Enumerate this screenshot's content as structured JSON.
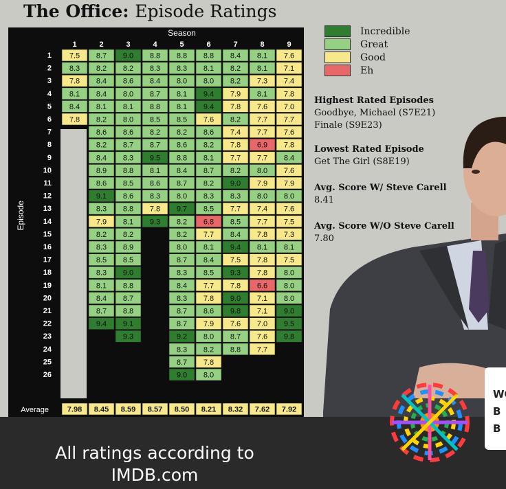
{
  "title": {
    "main": "The Office:",
    "sub": "Episode Ratings"
  },
  "chart_data": {
    "type": "heatmap",
    "title": "The Office: Episode Ratings",
    "xlabel": "Season",
    "ylabel": "Episode",
    "seasons": [
      "1",
      "2",
      "3",
      "4",
      "5",
      "6",
      "7",
      "8",
      "9"
    ],
    "episodes": [
      "1",
      "2",
      "3",
      "4",
      "5",
      "6",
      "7",
      "8",
      "9",
      "10",
      "11",
      "12",
      "13",
      "14",
      "15",
      "16",
      "17",
      "18",
      "19",
      "20",
      "21",
      "22",
      "23",
      "24",
      "25",
      "26"
    ],
    "values": [
      [
        7.5,
        8.3,
        7.8,
        8.1,
        8.4,
        7.8
      ],
      [
        8.7,
        8.2,
        8.4,
        8.4,
        8.1,
        8.2,
        8.6,
        8.2,
        8.4,
        8.9,
        8.6,
        9.1,
        8.3,
        7.9,
        8.2,
        8.3,
        8.5,
        8.3,
        8.1,
        8.4,
        8.7,
        9.4
      ],
      [
        9.0,
        8.2,
        8.6,
        8.0,
        8.1,
        8.0,
        8.6,
        8.7,
        8.3,
        8.8,
        8.5,
        8.6,
        8.8,
        8.1,
        8.2,
        8.9,
        8.5,
        9.0,
        8.8,
        8.7,
        8.8,
        9.1,
        9.3
      ],
      [
        8.8,
        8.3,
        8.4,
        8.7,
        8.8,
        8.5,
        8.2,
        8.7,
        9.5,
        8.1,
        8.6,
        8.3,
        7.8,
        9.3
      ],
      [
        8.8,
        8.3,
        8.0,
        8.1,
        8.1,
        8.5,
        8.2,
        8.6,
        8.8,
        8.4,
        8.7,
        8.0,
        9.7,
        8.2,
        8.2,
        8.0,
        8.7,
        8.3,
        8.4,
        8.3,
        8.7,
        8.7,
        9.2,
        8.3,
        8.7,
        9.0
      ],
      [
        8.8,
        8.1,
        8.0,
        9.4,
        9.4,
        7.6,
        8.6,
        8.2,
        8.1,
        8.7,
        8.2,
        8.3,
        8.5,
        6.8,
        7.7,
        8.1,
        8.4,
        8.5,
        7.7,
        7.8,
        8.6,
        7.9,
        8.0,
        8.2,
        7.8,
        8.0
      ],
      [
        8.4,
        8.2,
        8.2,
        7.9,
        7.8,
        8.2,
        7.4,
        7.8,
        7.7,
        8.2,
        9.0,
        8.3,
        7.7,
        8.5,
        8.4,
        9.4,
        7.5,
        9.3,
        7.8,
        9.0,
        9.8,
        7.6,
        8.7,
        8.8
      ],
      [
        8.1,
        8.1,
        7.3,
        8.1,
        7.6,
        7.7,
        7.7,
        6.9,
        7.7,
        8.0,
        7.9,
        8.0,
        7.4,
        7.7,
        7.8,
        8.1,
        7.8,
        7.8,
        6.6,
        7.1,
        7.1,
        7.0,
        7.6,
        7.7
      ],
      [
        7.6,
        7.1,
        7.4,
        7.8,
        7.0,
        7.7,
        7.6,
        7.8,
        8.4,
        7.6,
        7.9,
        8.0,
        7.6,
        7.5,
        7.3,
        8.1,
        7.5,
        8.0,
        8.0,
        8.0,
        9.0,
        9.5,
        9.8
      ]
    ],
    "averages": [
      "7.98",
      "8.45",
      "8.59",
      "8.57",
      "8.50",
      "8.21",
      "8.32",
      "7.62",
      "7.92"
    ],
    "average_label": "Average",
    "legend": [
      {
        "label": "Incredible",
        "color": "#2f7d2f"
      },
      {
        "label": "Great",
        "color": "#95d083"
      },
      {
        "label": "Good",
        "color": "#f7e98a"
      },
      {
        "label": "Eh",
        "color": "#e8686a"
      }
    ],
    "thresholds": {
      "incredible": 9.0,
      "great": 8.0,
      "good": 7.0
    },
    "average_color": "#f7e98a"
  },
  "stats": {
    "highest_title": "Highest Rated Episodes",
    "highest_items": [
      "Goodbye, Michael (S7E21)",
      "Finale (S9E23)"
    ],
    "lowest_title": "Lowest Rated Episode",
    "lowest_items": [
      "Get The Girl (S8E19)"
    ],
    "with_title": "Avg. Score W/ Steve Carell",
    "with_value": "8.41",
    "without_title": "Avg. Score W/O Steve Carell",
    "without_value": "7.80"
  },
  "footer": {
    "line1": "All ratings according to",
    "line2": "IMDB.com"
  },
  "mug": {
    "lines": [
      "WO",
      "B",
      "B"
    ]
  }
}
